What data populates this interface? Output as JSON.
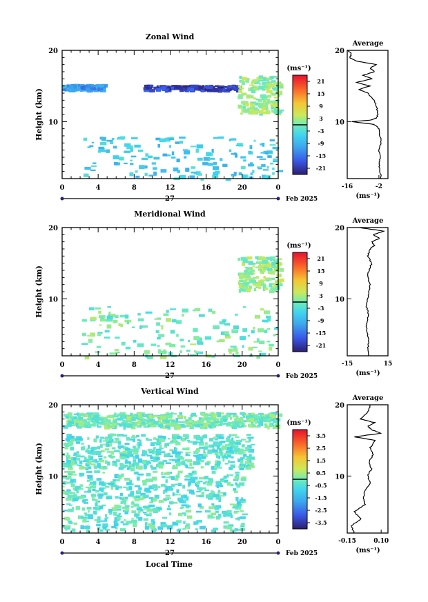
{
  "figure": {
    "date_label": "Feb 2025",
    "day_label": "27",
    "xlabel": "Local Time",
    "average_title": "Average",
    "unit_label": "(ms⁻¹)"
  },
  "chart_data": [
    {
      "type": "heatmap",
      "title": "Zonal Wind",
      "ylabel": "Height (km)",
      "xlabel": "",
      "xticks": [
        "0",
        "4",
        "8",
        "12",
        "16",
        "20",
        "0"
      ],
      "xlim": [
        0,
        24
      ],
      "ylim": [
        2,
        20
      ],
      "yticks": [
        "20",
        "10"
      ],
      "colorbar": {
        "unit": "(ms⁻¹)",
        "ticks": [
          "21",
          "15",
          "9",
          "3",
          "-3",
          "-9",
          "-15",
          "-21"
        ],
        "range": [
          -24,
          24
        ],
        "contour_value": 0
      },
      "features": [
        {
          "desc": "strong westward band",
          "x": [
            9,
            19.5
          ],
          "y": [
            14.5,
            15.2
          ],
          "value": -20
        },
        {
          "desc": "westward band",
          "x": [
            0,
            4.5
          ],
          "y": [
            14.6,
            15.3
          ],
          "value": -12
        },
        {
          "desc": "mixed layer",
          "x": [
            19.5,
            24
          ],
          "y": [
            11.2,
            16.5
          ],
          "value": 2
        },
        {
          "desc": "lower patches",
          "x": [
            2,
            24
          ],
          "y": [
            2,
            8
          ],
          "value": -6
        }
      ],
      "profile": {
        "title": "Average",
        "xticks": [
          "-16",
          "-2"
        ],
        "xlim": [
          -16,
          2
        ],
        "unit": "(ms⁻¹)",
        "height": [
          2,
          3,
          4,
          5,
          6,
          7,
          8,
          9,
          9.6,
          10,
          10.2,
          10.5,
          11,
          12,
          13,
          14,
          14.5,
          15,
          15.5,
          16,
          16.5,
          17,
          17.5,
          18,
          18.5,
          19,
          19.5,
          20
        ],
        "values": [
          -1,
          -1.5,
          -2,
          -1.5,
          -2,
          -1,
          -1.5,
          -2,
          -4,
          -14,
          -6,
          -3,
          -2.5,
          -3,
          -4,
          -7,
          -11,
          -6,
          -12,
          -5,
          -9,
          -4,
          -6,
          -3,
          -12,
          -15,
          -14,
          -16
        ]
      }
    },
    {
      "type": "heatmap",
      "title": "Meridional Wind",
      "ylabel": "Height (km)",
      "xlabel": "",
      "xticks": [
        "0",
        "4",
        "8",
        "12",
        "16",
        "20",
        "0"
      ],
      "xlim": [
        0,
        24
      ],
      "ylim": [
        2,
        20
      ],
      "yticks": [
        "20",
        "10"
      ],
      "colorbar": {
        "unit": "(ms⁻¹)",
        "ticks": [
          "21",
          "15",
          "9",
          "3",
          "-3",
          "-9",
          "-15",
          "-21"
        ],
        "range": [
          -24,
          24
        ],
        "contour_value": 0
      },
      "features": [
        {
          "desc": "mixed layer",
          "x": [
            19.5,
            24
          ],
          "y": [
            11.2,
            16
          ],
          "value": 2
        },
        {
          "desc": "sparse lower patches",
          "x": [
            2,
            24
          ],
          "y": [
            2,
            9
          ],
          "value": 0
        }
      ],
      "profile": {
        "title": "Average",
        "xticks": [
          "-15",
          "15"
        ],
        "xlim": [
          -15,
          15
        ],
        "unit": "(ms⁻¹)",
        "height": [
          2,
          3,
          4,
          5,
          6,
          7,
          8,
          9,
          10,
          11,
          12,
          13,
          14,
          15,
          16,
          17,
          17.5,
          18,
          18.5,
          19,
          19.5,
          20
        ],
        "values": [
          1,
          0,
          1,
          0,
          -1,
          0,
          0.5,
          -1,
          0,
          1,
          2,
          0,
          1,
          3,
          0,
          2,
          5,
          3,
          9,
          4,
          12,
          -6
        ]
      }
    },
    {
      "type": "heatmap",
      "title": "Vertical Wind",
      "ylabel": "Height (km)",
      "xlabel": "Local Time",
      "xticks": [
        "0",
        "4",
        "8",
        "12",
        "16",
        "20",
        "0"
      ],
      "xlim": [
        0,
        24
      ],
      "ylim": [
        2,
        20
      ],
      "yticks": [
        "20",
        "10"
      ],
      "colorbar": {
        "unit": "(ms⁻¹)",
        "ticks": [
          "3.5",
          "2.5",
          "1.5",
          "0.5",
          "-0.5",
          "-1.5",
          "-2.5",
          "-3.5"
        ],
        "range": [
          -4,
          4
        ],
        "contour_value": 0
      },
      "features": [
        {
          "desc": "upper layer",
          "x": [
            0,
            24
          ],
          "y": [
            17,
            19
          ],
          "value": 0
        },
        {
          "desc": "mid layer",
          "x": [
            0,
            21
          ],
          "y": [
            11.2,
            16
          ],
          "value": -0.3
        },
        {
          "desc": "lower layer",
          "x": [
            0,
            20
          ],
          "y": [
            2.5,
            10.8
          ],
          "value": -0.3
        }
      ],
      "profile": {
        "title": "Average",
        "xticks": [
          "-0.15",
          "0.10"
        ],
        "xlim": [
          -0.15,
          0.15
        ],
        "unit": "(ms⁻¹)",
        "height": [
          2,
          3,
          4,
          5,
          6,
          7,
          8,
          9,
          10,
          11,
          12,
          13,
          14,
          15,
          15.5,
          16,
          16.5,
          17,
          17.5,
          18,
          19,
          20
        ],
        "values": [
          -0.1,
          -0.12,
          -0.05,
          -0.1,
          -0.02,
          -0.03,
          -0.02,
          0.02,
          0.0,
          0.03,
          0.01,
          0.04,
          0.02,
          0.06,
          -0.1,
          0.1,
          0.03,
          0.0,
          0.05,
          -0.05,
          0.0,
          0.02
        ]
      }
    }
  ]
}
